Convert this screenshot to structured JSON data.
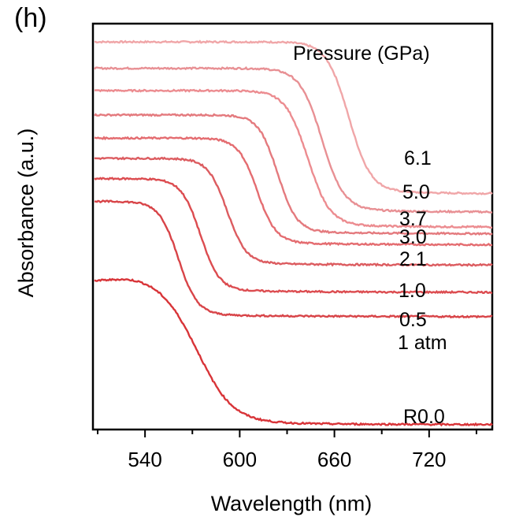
{
  "panel_label": "(h)",
  "chart_data": {
    "type": "line",
    "title": "",
    "xlabel": "Wavelength (nm)",
    "ylabel": "Absorbance (a.u.)",
    "xlim": [
      507,
      760
    ],
    "x_ticks": [
      "540",
      "600",
      "660",
      "720"
    ],
    "y_ticks": false,
    "grid": false,
    "legend_title": "Pressure (GPa)",
    "series": [
      {
        "name": "6.1",
        "color": "#f0a6a8",
        "edge": 669,
        "high": 0.955,
        "low": 0.58,
        "width": 7
      },
      {
        "name": "5.0",
        "color": "#e89094",
        "edge": 652,
        "high": 0.89,
        "low": 0.535,
        "width": 7
      },
      {
        "name": "3.7",
        "color": "#ec8c90",
        "edge": 643,
        "high": 0.835,
        "low": 0.498,
        "width": 7
      },
      {
        "name": "3.0",
        "color": "#e47a7e",
        "edge": 624,
        "high": 0.775,
        "low": 0.482,
        "width": 6
      },
      {
        "name": "2.1",
        "color": "#e46c70",
        "edge": 611,
        "high": 0.718,
        "low": 0.455,
        "width": 6
      },
      {
        "name": "1.0",
        "color": "#dc5c60",
        "edge": 592,
        "high": 0.668,
        "low": 0.405,
        "width": 6
      },
      {
        "name": "0.5",
        "color": "#dc4c50",
        "edge": 575,
        "high": 0.618,
        "low": 0.338,
        "width": 6
      },
      {
        "name": "1 atm",
        "color": "#d84448",
        "edge": 561,
        "high": 0.562,
        "low": 0.278,
        "width": 6
      },
      {
        "name": "R0.0",
        "color": "#d83438",
        "edge": 573,
        "high": 0.372,
        "low": 0.012,
        "width": 11
      }
    ]
  }
}
